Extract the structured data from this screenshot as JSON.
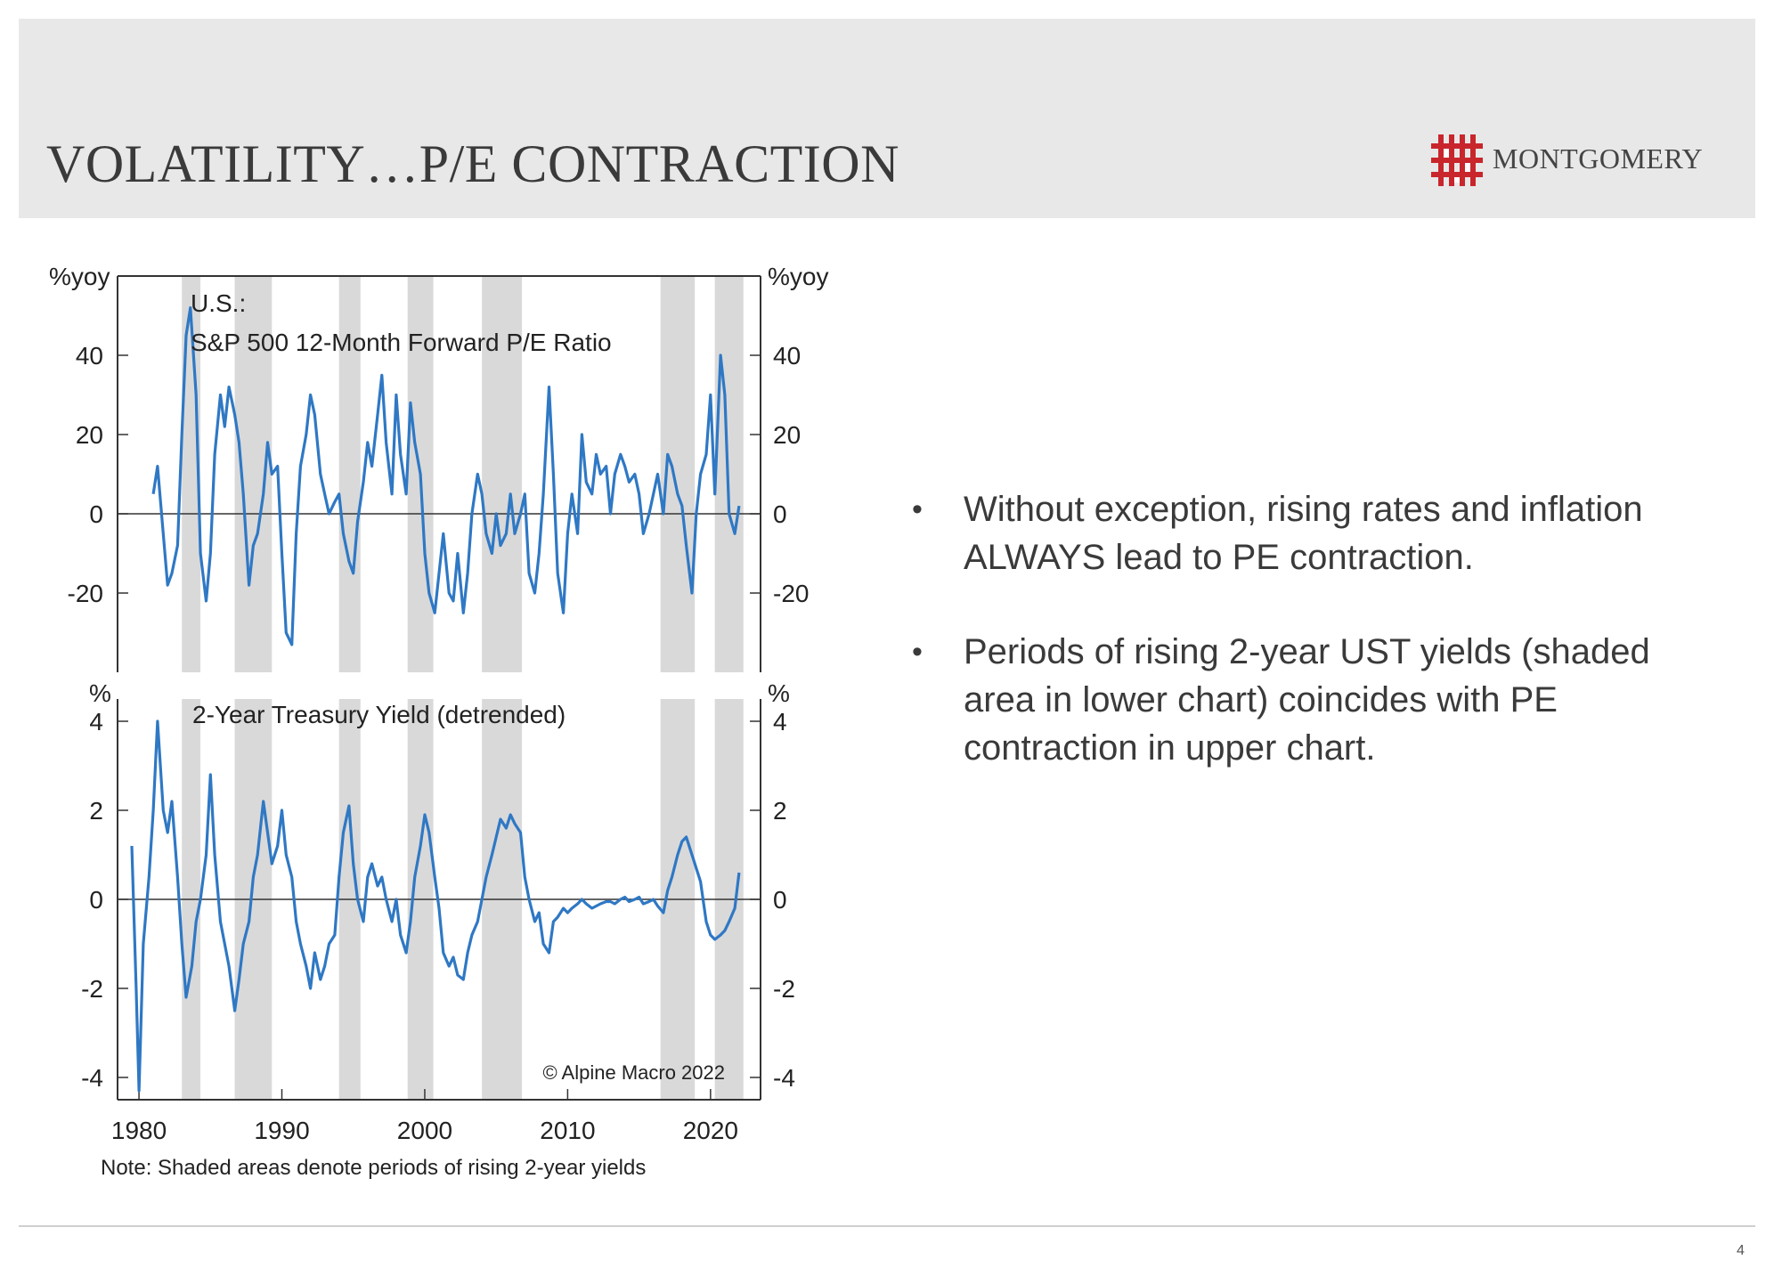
{
  "slide": {
    "title": "VOLATILITY…P/E CONTRACTION",
    "logo_text": "MONTGOMERY",
    "brand_color": "#c8262c",
    "page_number": "4",
    "bullets": [
      "Without exception, rising rates and inflation ALWAYS lead to PE contraction.",
      "Periods of rising 2-year UST yields (shaded area in lower chart) coincides with PE contraction in upper chart."
    ]
  },
  "chart_data": [
    {
      "type": "line",
      "title": "U.S.:",
      "subtitle": "S&P 500 12-Month Forward P/E Ratio",
      "ylabel_left": "%yoy",
      "ylabel_right": "%yoy",
      "ylim": [
        -40,
        60
      ],
      "yticks": [
        40,
        20,
        0,
        -20
      ],
      "line_color": "#2f78c4",
      "series": [
        {
          "x": [
            1981.0,
            1981.3,
            1981.7,
            1982.0,
            1982.3,
            1982.7,
            1983.0,
            1983.3,
            1983.6,
            1984.0,
            1984.3,
            1984.7,
            1985.0,
            1985.3,
            1985.7,
            1986.0,
            1986.3,
            1986.7,
            1987.0,
            1987.3,
            1987.7,
            1988.0,
            1988.3,
            1988.7,
            1989.0,
            1989.3,
            1989.7,
            1990.0,
            1990.3,
            1990.7,
            1991.0,
            1991.3,
            1991.7,
            1992.0,
            1992.3,
            1992.7,
            1993.0,
            1993.3,
            1993.7,
            1994.0,
            1994.3,
            1994.7,
            1995.0,
            1995.3,
            1995.7,
            1996.0,
            1996.3,
            1996.7,
            1997.0,
            1997.3,
            1997.7,
            1998.0,
            1998.3,
            1998.7,
            1999.0,
            1999.3,
            1999.7,
            2000.0,
            2000.3,
            2000.7,
            2001.0,
            2001.3,
            2001.7,
            2002.0,
            2002.3,
            2002.7,
            2003.0,
            2003.3,
            2003.7,
            2004.0,
            2004.3,
            2004.7,
            2005.0,
            2005.3,
            2005.7,
            2006.0,
            2006.3,
            2006.7,
            2007.0,
            2007.3,
            2007.7,
            2008.0,
            2008.3,
            2008.7,
            2009.0,
            2009.3,
            2009.7,
            2010.0,
            2010.3,
            2010.7,
            2011.0,
            2011.3,
            2011.7,
            2012.0,
            2012.3,
            2012.7,
            2013.0,
            2013.3,
            2013.7,
            2014.0,
            2014.3,
            2014.7,
            2015.0,
            2015.3,
            2015.7,
            2016.0,
            2016.3,
            2016.7,
            2017.0,
            2017.3,
            2017.7,
            2018.0,
            2018.3,
            2018.7,
            2019.0,
            2019.3,
            2019.7,
            2020.0,
            2020.3,
            2020.7,
            2021.0,
            2021.3,
            2021.7,
            2022.0
          ],
          "values": [
            5,
            12,
            -5,
            -18,
            -15,
            -8,
            20,
            45,
            52,
            30,
            -10,
            -22,
            -10,
            15,
            30,
            22,
            32,
            25,
            18,
            5,
            -18,
            -8,
            -5,
            5,
            18,
            10,
            12,
            -10,
            -30,
            -33,
            -5,
            12,
            20,
            30,
            25,
            10,
            5,
            0,
            3,
            5,
            -5,
            -12,
            -15,
            -2,
            8,
            18,
            12,
            25,
            35,
            18,
            5,
            30,
            15,
            5,
            28,
            18,
            10,
            -10,
            -20,
            -25,
            -15,
            -5,
            -20,
            -22,
            -10,
            -25,
            -15,
            0,
            10,
            5,
            -5,
            -10,
            0,
            -8,
            -5,
            5,
            -5,
            0,
            5,
            -15,
            -20,
            -10,
            5,
            32,
            10,
            -15,
            -25,
            -5,
            5,
            -5,
            20,
            8,
            5,
            15,
            10,
            12,
            0,
            10,
            15,
            12,
            8,
            10,
            5,
            -5,
            0,
            5,
            10,
            0,
            15,
            12,
            5,
            2,
            -8,
            -20,
            0,
            10,
            15,
            30,
            5,
            40,
            30,
            0,
            -5,
            2
          ]
        }
      ]
    },
    {
      "type": "line",
      "title": "2-Year Treasury Yield (detrended)",
      "ylabel_left": "%",
      "ylabel_right": "%",
      "ylim": [
        -4.5,
        4.5
      ],
      "yticks": [
        4,
        2,
        0,
        -2,
        -4
      ],
      "xlim": [
        1978.5,
        2023.5
      ],
      "xticks": [
        1980,
        1990,
        2000,
        2010,
        2020
      ],
      "annotation": "© Alpine Macro 2022",
      "note": "Note: Shaded areas denote periods of rising 2-year yields",
      "shaded_periods": [
        [
          1983.0,
          1984.3
        ],
        [
          1986.7,
          1989.3
        ],
        [
          1994.0,
          1995.5
        ],
        [
          1998.8,
          2000.6
        ],
        [
          2004.0,
          2006.8
        ],
        [
          2016.5,
          2018.9
        ],
        [
          2020.3,
          2022.3
        ]
      ],
      "line_color": "#2f78c4",
      "series": [
        {
          "x": [
            1979.5,
            1979.8,
            1980.0,
            1980.3,
            1980.7,
            1981.0,
            1981.3,
            1981.7,
            1982.0,
            1982.3,
            1982.7,
            1983.0,
            1983.3,
            1983.7,
            1984.0,
            1984.3,
            1984.7,
            1985.0,
            1985.3,
            1985.7,
            1986.0,
            1986.3,
            1986.7,
            1987.0,
            1987.3,
            1987.7,
            1988.0,
            1988.3,
            1988.7,
            1989.0,
            1989.3,
            1989.7,
            1990.0,
            1990.3,
            1990.7,
            1991.0,
            1991.3,
            1991.7,
            1992.0,
            1992.3,
            1992.7,
            1993.0,
            1993.3,
            1993.7,
            1994.0,
            1994.3,
            1994.7,
            1995.0,
            1995.3,
            1995.7,
            1996.0,
            1996.3,
            1996.7,
            1997.0,
            1997.3,
            1997.7,
            1998.0,
            1998.3,
            1998.7,
            1999.0,
            1999.3,
            1999.7,
            2000.0,
            2000.3,
            2000.7,
            2001.0,
            2001.3,
            2001.7,
            2002.0,
            2002.3,
            2002.7,
            2003.0,
            2003.3,
            2003.7,
            2004.0,
            2004.3,
            2004.7,
            2005.0,
            2005.3,
            2005.7,
            2006.0,
            2006.3,
            2006.7,
            2007.0,
            2007.3,
            2007.7,
            2008.0,
            2008.3,
            2008.7,
            2009.0,
            2009.3,
            2009.7,
            2010.0,
            2010.3,
            2010.7,
            2011.0,
            2011.3,
            2011.7,
            2012.0,
            2012.3,
            2012.7,
            2013.0,
            2013.3,
            2013.7,
            2014.0,
            2014.3,
            2014.7,
            2015.0,
            2015.3,
            2015.7,
            2016.0,
            2016.3,
            2016.7,
            2017.0,
            2017.3,
            2017.7,
            2018.0,
            2018.3,
            2018.7,
            2019.0,
            2019.3,
            2019.7,
            2020.0,
            2020.3,
            2020.7,
            2021.0,
            2021.3,
            2021.7,
            2022.0
          ],
          "values": [
            1.2,
            -2.0,
            -4.3,
            -1.0,
            0.5,
            2.0,
            4.0,
            2.0,
            1.5,
            2.2,
            0.5,
            -1.0,
            -2.2,
            -1.5,
            -0.5,
            0.0,
            1.0,
            2.8,
            1.0,
            -0.5,
            -1.0,
            -1.5,
            -2.5,
            -1.8,
            -1.0,
            -0.5,
            0.5,
            1.0,
            2.2,
            1.5,
            0.8,
            1.2,
            2.0,
            1.0,
            0.5,
            -0.5,
            -1.0,
            -1.5,
            -2.0,
            -1.2,
            -1.8,
            -1.5,
            -1.0,
            -0.8,
            0.5,
            1.5,
            2.1,
            0.8,
            0.0,
            -0.5,
            0.5,
            0.8,
            0.3,
            0.5,
            0.0,
            -0.5,
            0.0,
            -0.8,
            -1.2,
            -0.5,
            0.5,
            1.2,
            1.9,
            1.5,
            0.5,
            -0.2,
            -1.2,
            -1.5,
            -1.3,
            -1.7,
            -1.8,
            -1.2,
            -0.8,
            -0.5,
            0.0,
            0.5,
            1.0,
            1.4,
            1.8,
            1.6,
            1.9,
            1.7,
            1.5,
            0.5,
            0.0,
            -0.5,
            -0.3,
            -1.0,
            -1.2,
            -0.5,
            -0.4,
            -0.2,
            -0.3,
            -0.2,
            -0.1,
            0.0,
            -0.1,
            -0.2,
            -0.15,
            -0.1,
            -0.05,
            -0.05,
            -0.1,
            0.0,
            0.05,
            -0.05,
            0.0,
            0.05,
            -0.1,
            -0.05,
            0.0,
            -0.15,
            -0.3,
            0.2,
            0.5,
            1.0,
            1.3,
            1.4,
            1.0,
            0.7,
            0.4,
            -0.5,
            -0.8,
            -0.9,
            -0.8,
            -0.7,
            -0.5,
            -0.2,
            0.6
          ]
        }
      ]
    }
  ],
  "shared_axis": {
    "xticks": [
      "1980",
      "1990",
      "2000",
      "2010",
      "2020"
    ]
  }
}
